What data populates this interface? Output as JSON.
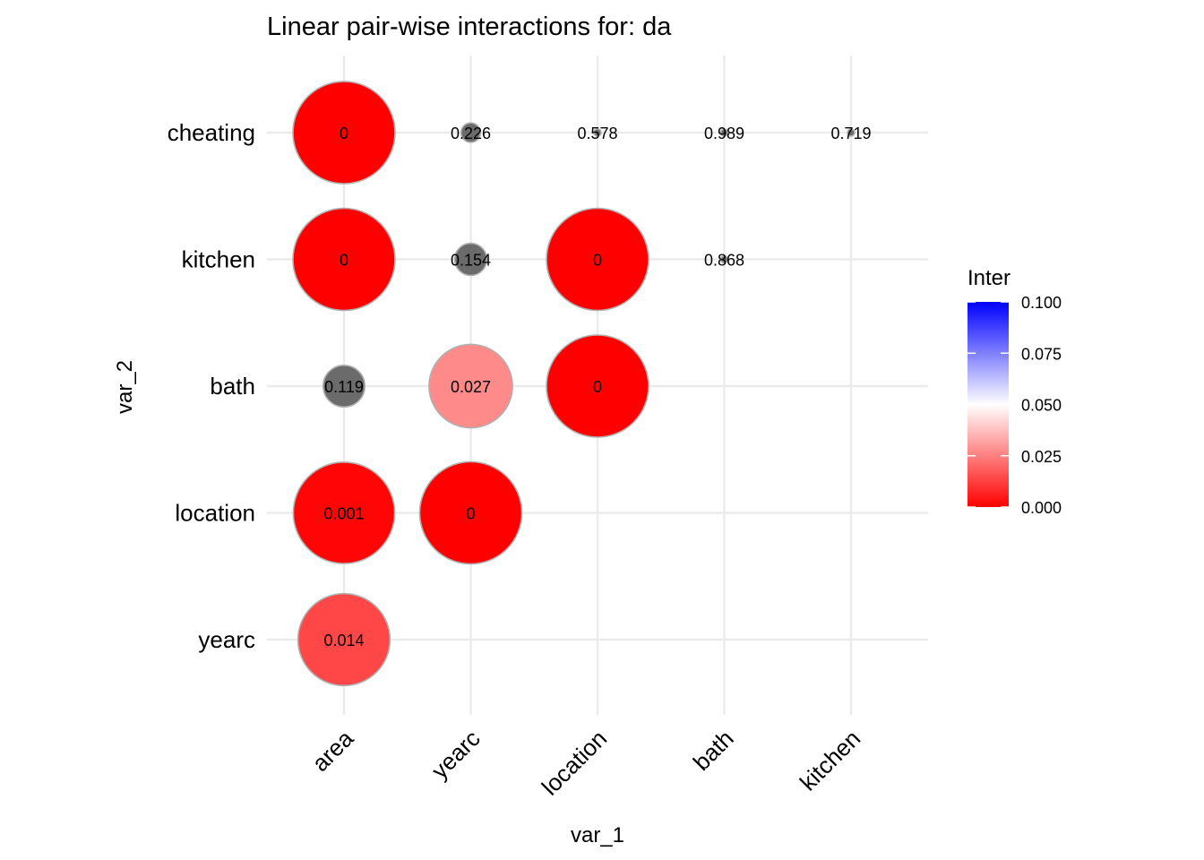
{
  "chart_data": {
    "type": "scatter",
    "subtype": "bubble-matrix",
    "title": "Linear pair-wise interactions for: da",
    "xlabel": "var_1",
    "ylabel": "var_2",
    "x_categories": [
      "area",
      "yearc",
      "location",
      "bath",
      "kitchen"
    ],
    "y_categories": [
      "yearc",
      "location",
      "bath",
      "kitchen",
      "cheating"
    ],
    "size_meaning": "smaller p-value gives larger bubble",
    "points": [
      {
        "var_1": "area",
        "var_2": "cheating",
        "value": 0,
        "label": "0",
        "colored": true
      },
      {
        "var_1": "yearc",
        "var_2": "cheating",
        "value": 0.226,
        "label": "0.226",
        "colored": false
      },
      {
        "var_1": "location",
        "var_2": "cheating",
        "value": 0.578,
        "label": "0.578",
        "colored": false
      },
      {
        "var_1": "bath",
        "var_2": "cheating",
        "value": 0.989,
        "label": "0.989",
        "colored": false
      },
      {
        "var_1": "kitchen",
        "var_2": "cheating",
        "value": 0.719,
        "label": "0.719",
        "colored": false
      },
      {
        "var_1": "area",
        "var_2": "kitchen",
        "value": 0,
        "label": "0",
        "colored": true
      },
      {
        "var_1": "yearc",
        "var_2": "kitchen",
        "value": 0.154,
        "label": "0.154",
        "colored": false
      },
      {
        "var_1": "location",
        "var_2": "kitchen",
        "value": 0,
        "label": "0",
        "colored": true
      },
      {
        "var_1": "bath",
        "var_2": "kitchen",
        "value": 0.868,
        "label": "0.868",
        "colored": false
      },
      {
        "var_1": "area",
        "var_2": "bath",
        "value": 0.119,
        "label": "0.119",
        "colored": false
      },
      {
        "var_1": "yearc",
        "var_2": "bath",
        "value": 0.027,
        "label": "0.027",
        "colored": true
      },
      {
        "var_1": "location",
        "var_2": "bath",
        "value": 0,
        "label": "0",
        "colored": true
      },
      {
        "var_1": "area",
        "var_2": "location",
        "value": 0.001,
        "label": "0.001",
        "colored": true
      },
      {
        "var_1": "yearc",
        "var_2": "location",
        "value": 0,
        "label": "0",
        "colored": true
      },
      {
        "var_1": "area",
        "var_2": "yearc",
        "value": 0.014,
        "label": "0.014",
        "colored": true
      }
    ],
    "legend": {
      "title": "Inter",
      "position": "right",
      "range": [
        0,
        0.1
      ],
      "ticks": [
        "0.000",
        "0.025",
        "0.050",
        "0.075",
        "0.100"
      ],
      "tick_values": [
        0,
        0.025,
        0.05,
        0.075,
        0.1
      ],
      "colors": {
        "low": "#ff0000",
        "mid": "#ffffff",
        "high": "#0000ff"
      },
      "na_color": "#6b6b6b"
    },
    "grid": true
  }
}
